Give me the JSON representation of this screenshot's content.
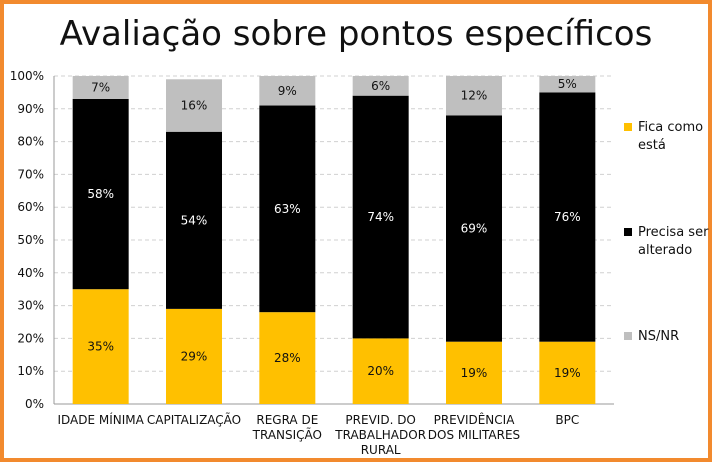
{
  "chart_data": {
    "type": "bar",
    "stacked": true,
    "title": "Avaliação sobre pontos específicos",
    "categories": [
      [
        "IDADE MÍNIMA"
      ],
      [
        "CAPITALIZAÇÃO"
      ],
      [
        "REGRA DE",
        "TRANSIÇÃO"
      ],
      [
        "PREVID. DO",
        "TRABALHADOR",
        "RURAL"
      ],
      [
        "PREVIDÊNCIA",
        "DOS MILITARES"
      ],
      [
        "BPC"
      ]
    ],
    "series": [
      {
        "name": "Fica como está",
        "legend_lines": [
          "Fica como",
          "está"
        ],
        "color": "#ffc000",
        "label_color": "#111111",
        "values": [
          35,
          29,
          28,
          20,
          19,
          19
        ]
      },
      {
        "name": "Precisa ser alterado",
        "legend_lines": [
          "Precisa ser",
          "alterado"
        ],
        "color": "#000000",
        "label_color": "#ffffff",
        "values": [
          58,
          54,
          63,
          74,
          69,
          76
        ]
      },
      {
        "name": "NS/NR",
        "legend_lines": [
          "NS/NR"
        ],
        "color": "#bfbfbf",
        "label_color": "#111111",
        "values": [
          7,
          16,
          9,
          6,
          12,
          5
        ]
      }
    ],
    "ylim": [
      0,
      100
    ],
    "yticks": [
      "0%",
      "10%",
      "20%",
      "30%",
      "40%",
      "50%",
      "60%",
      "70%",
      "80%",
      "90%",
      "100%"
    ],
    "value_suffix": "%",
    "grid": true,
    "legend_position": "right",
    "frame_color": "#f28a2e"
  }
}
